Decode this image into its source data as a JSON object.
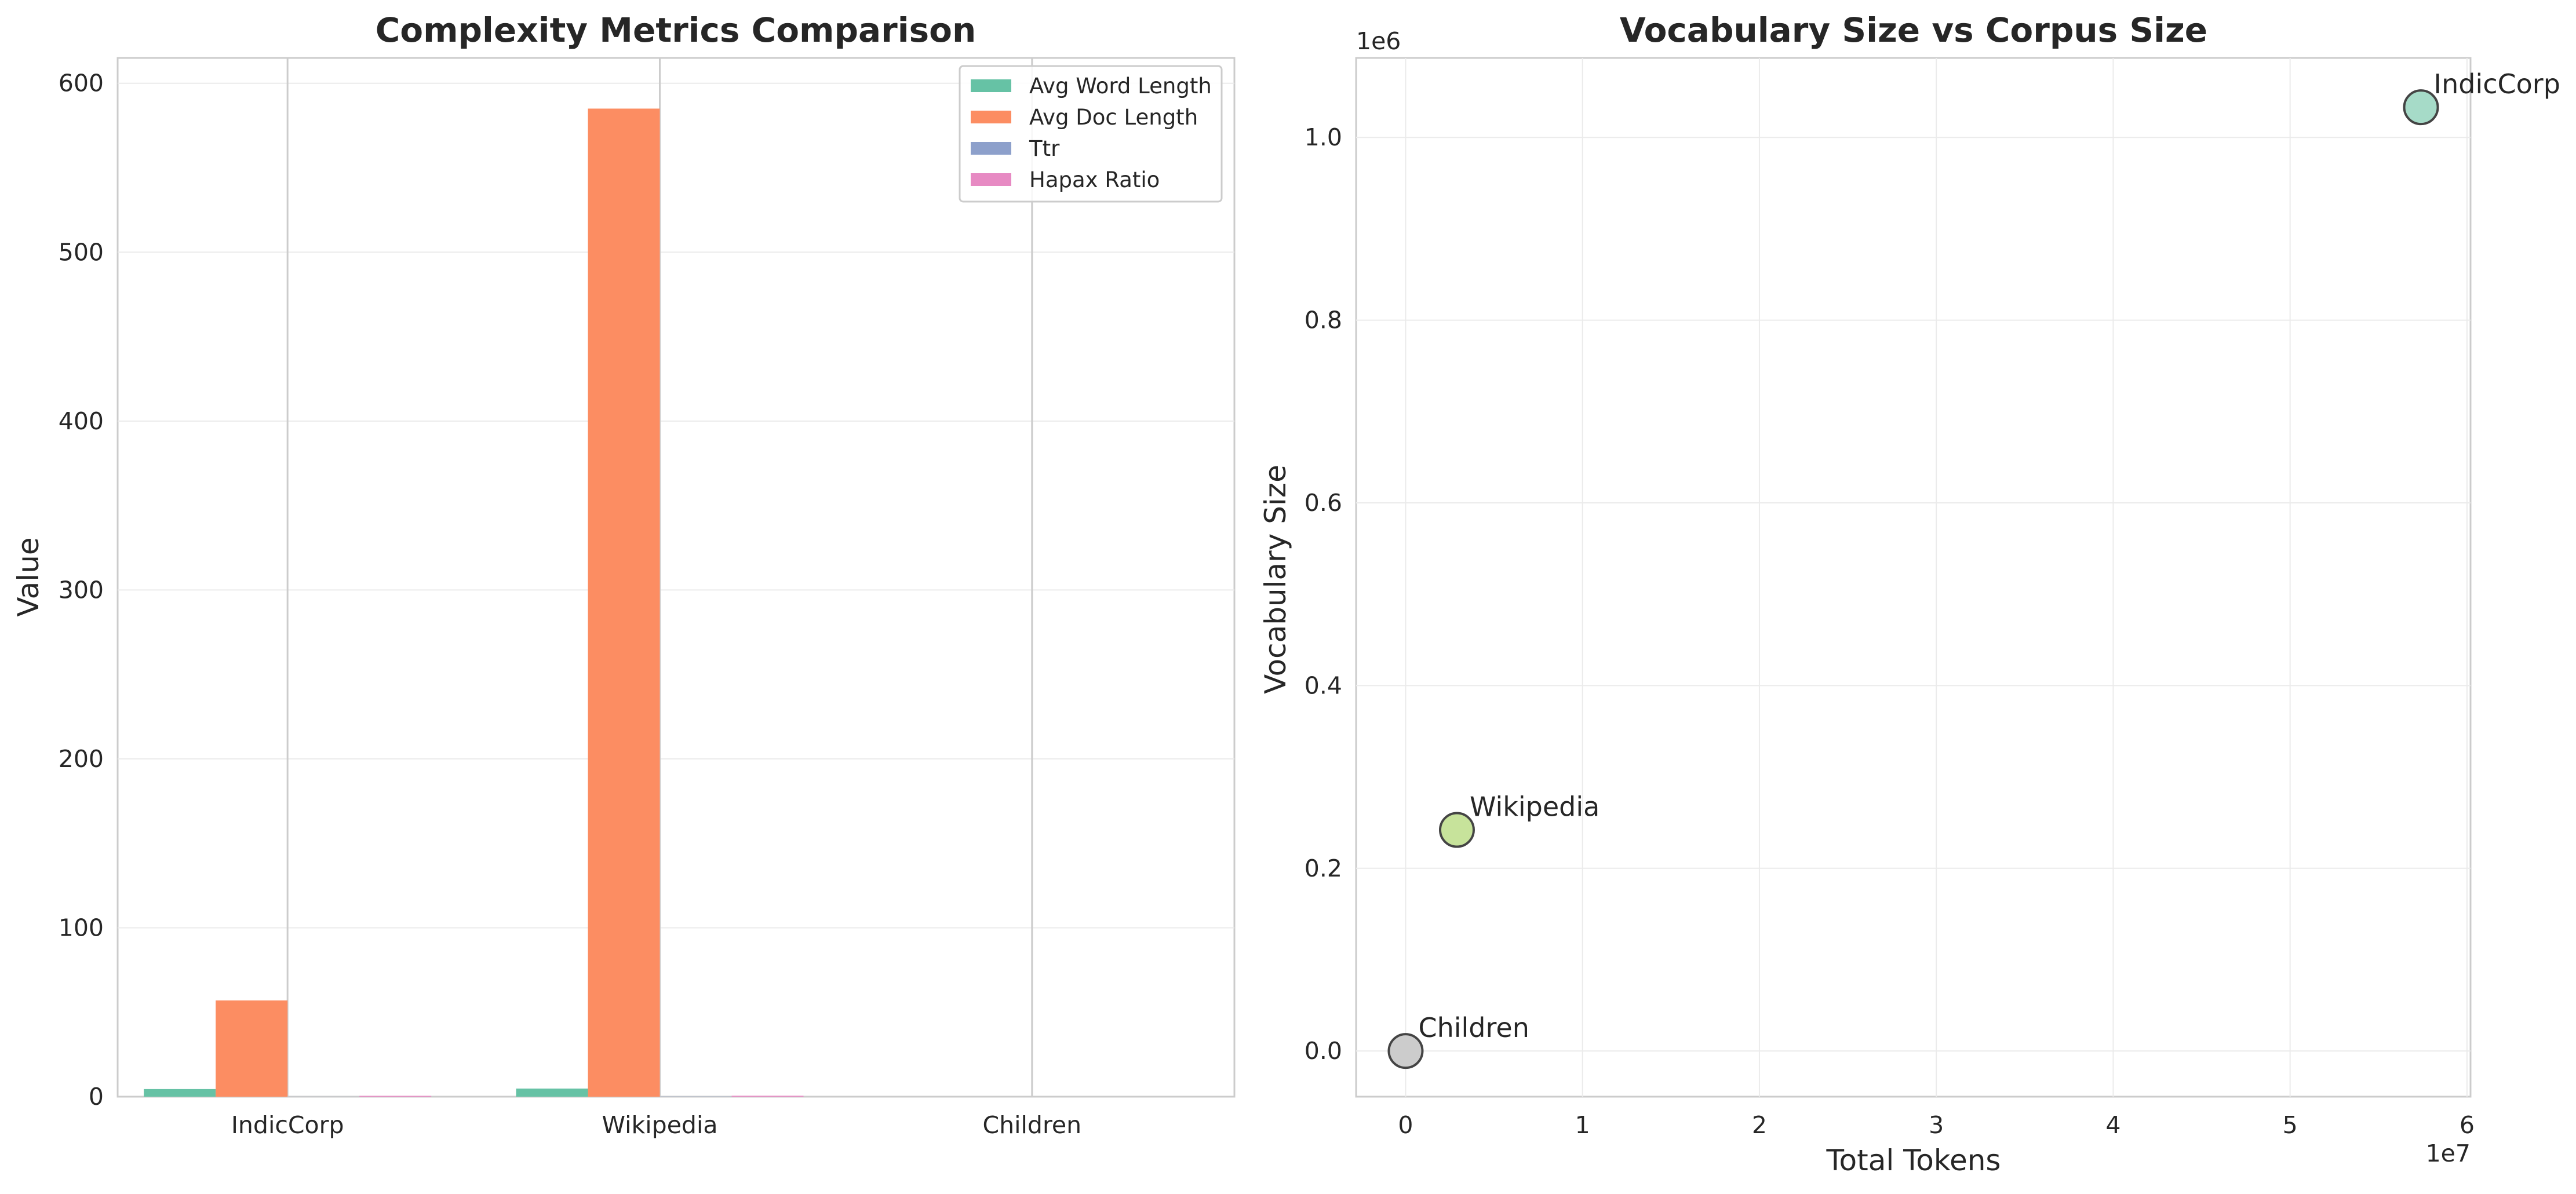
{
  "chart_data": [
    {
      "type": "bar",
      "title": "Complexity Metrics Comparison",
      "xlabel": "",
      "ylabel": "Value",
      "categories": [
        "IndicCorp",
        "Wikipedia",
        "Children"
      ],
      "series": [
        {
          "name": "Avg Word Length",
          "values": [
            4.5,
            4.8,
            0
          ],
          "color": "#66c2a5"
        },
        {
          "name": "Avg Doc Length",
          "values": [
            57,
            585,
            0
          ],
          "color": "#fc8d62"
        },
        {
          "name": "Ttr",
          "values": [
            0.02,
            0.08,
            0
          ],
          "color": "#8da0cb"
        },
        {
          "name": "Hapax Ratio",
          "values": [
            0.5,
            0.55,
            0
          ],
          "color": "#e78ac3"
        }
      ],
      "ylim": [
        0,
        615
      ],
      "yticks": [
        0,
        100,
        200,
        300,
        400,
        500,
        600
      ],
      "grid": true,
      "legend": "top-right"
    },
    {
      "type": "scatter",
      "title": "Vocabulary Size vs Corpus Size",
      "xlabel": "Total Tokens",
      "ylabel": "Vocabulary Size",
      "x_offset_label": "1e7",
      "y_offset_label": "1e6",
      "points": [
        {
          "label": "IndicCorp",
          "x": 57400000,
          "y": 1033000,
          "color": "#a6dbc8"
        },
        {
          "label": "Wikipedia",
          "x": 2900000,
          "y": 242000,
          "color": "#c7e39b"
        },
        {
          "label": "Children",
          "x": 0,
          "y": 0,
          "color": "#cccccc"
        }
      ],
      "xlim": [
        -2800000,
        60200000
      ],
      "ylim": [
        -50000,
        1087000
      ],
      "xticks": [
        0,
        10000000,
        20000000,
        30000000,
        40000000,
        50000000,
        60000000
      ],
      "xtick_labels": [
        "0",
        "1",
        "2",
        "3",
        "4",
        "5",
        "6"
      ],
      "yticks": [
        0,
        200000,
        400000,
        600000,
        800000,
        1000000
      ],
      "ytick_labels": [
        "0.0",
        "0.2",
        "0.4",
        "0.6",
        "0.8",
        "1.0"
      ],
      "grid": true
    }
  ]
}
